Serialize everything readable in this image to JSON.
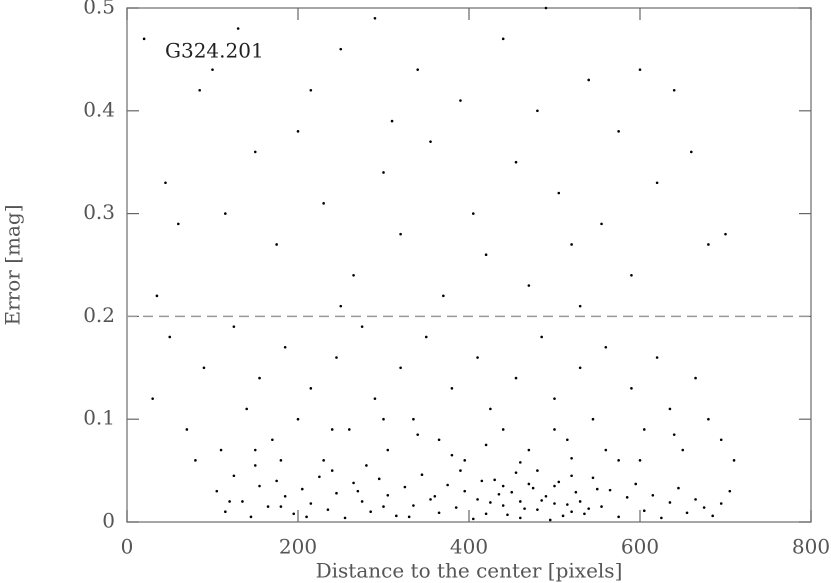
{
  "chart_data": {
    "type": "scatter",
    "xlabel": "Distance to the center [pixels]",
    "ylabel": "Error [mag]",
    "annotation": "G324.201",
    "xlim": [
      0,
      800
    ],
    "xticks": [
      0,
      200,
      400,
      600,
      800
    ],
    "ylim": [
      0,
      0.5
    ],
    "yticks": [
      0,
      0.1,
      0.2,
      0.3,
      0.4,
      0.5
    ],
    "hline": 0.2,
    "color": "#000000",
    "series": [
      {
        "x": [
          20,
          45,
          60,
          85,
          100,
          115,
          130,
          150,
          175,
          200,
          215,
          230,
          250,
          265,
          290,
          300,
          320,
          340,
          355,
          370,
          390,
          405,
          420,
          440,
          455,
          470,
          490,
          505,
          520,
          540,
          555,
          575,
          590,
          600,
          620,
          640,
          660,
          680,
          700,
          35,
          310,
          480,
          530,
          250,
          30,
          50,
          70,
          90,
          110,
          125,
          140,
          155,
          170,
          185,
          200,
          215,
          230,
          245,
          260,
          275,
          290,
          305,
          320,
          335,
          350,
          365,
          380,
          395,
          410,
          425,
          440,
          455,
          470,
          485,
          500,
          515,
          530,
          545,
          560,
          575,
          590,
          605,
          620,
          635,
          650,
          665,
          680,
          695,
          710,
          180,
          280,
          380,
          460,
          520,
          420,
          340,
          560,
          240,
          150,
          600,
          300,
          500,
          640,
          80,
          105,
          115,
          125,
          135,
          145,
          155,
          165,
          175,
          185,
          195,
          205,
          215,
          225,
          235,
          245,
          255,
          265,
          275,
          285,
          295,
          305,
          315,
          325,
          335,
          345,
          355,
          365,
          375,
          385,
          395,
          405,
          415,
          425,
          435,
          445,
          455,
          465,
          475,
          485,
          495,
          505,
          515,
          525,
          535,
          545,
          555,
          565,
          575,
          585,
          595,
          605,
          615,
          625,
          635,
          645,
          655,
          665,
          675,
          685,
          695,
          705,
          410,
          420,
          430,
          440,
          450,
          460,
          470,
          480,
          490,
          500,
          510,
          520,
          530,
          540,
          550,
          460,
          480,
          500,
          440,
          520,
          390,
          360,
          330,
          300,
          270,
          240,
          210,
          180,
          150,
          120
        ],
        "y": [
          0.47,
          0.33,
          0.29,
          0.42,
          0.44,
          0.3,
          0.48,
          0.36,
          0.27,
          0.38,
          0.42,
          0.31,
          0.46,
          0.24,
          0.49,
          0.34,
          0.28,
          0.44,
          0.37,
          0.22,
          0.41,
          0.3,
          0.26,
          0.47,
          0.35,
          0.23,
          0.5,
          0.32,
          0.27,
          0.43,
          0.29,
          0.38,
          0.24,
          0.44,
          0.33,
          0.42,
          0.36,
          0.27,
          0.28,
          0.22,
          0.39,
          0.4,
          0.21,
          0.21,
          0.12,
          0.18,
          0.09,
          0.15,
          0.07,
          0.19,
          0.11,
          0.14,
          0.08,
          0.17,
          0.1,
          0.13,
          0.06,
          0.16,
          0.09,
          0.19,
          0.12,
          0.07,
          0.15,
          0.1,
          0.18,
          0.08,
          0.13,
          0.06,
          0.16,
          0.11,
          0.09,
          0.14,
          0.07,
          0.18,
          0.12,
          0.08,
          0.15,
          0.1,
          0.17,
          0.06,
          0.13,
          0.09,
          0.16,
          0.11,
          0.07,
          0.14,
          0.1,
          0.08,
          0.06,
          0.06,
          0.055,
          0.065,
          0.058,
          0.062,
          0.075,
          0.085,
          0.07,
          0.09,
          0.07,
          0.06,
          0.1,
          0.09,
          0.085,
          0.06,
          0.03,
          0.01,
          0.045,
          0.02,
          0.005,
          0.035,
          0.015,
          0.04,
          0.025,
          0.008,
          0.032,
          0.018,
          0.044,
          0.012,
          0.028,
          0.004,
          0.038,
          0.02,
          0.01,
          0.042,
          0.026,
          0.006,
          0.034,
          0.016,
          0.046,
          0.022,
          0.009,
          0.036,
          0.014,
          0.03,
          0.003,
          0.04,
          0.019,
          0.027,
          0.007,
          0.048,
          0.013,
          0.033,
          0.021,
          0.002,
          0.039,
          0.017,
          0.029,
          0.008,
          0.043,
          0.015,
          0.031,
          0.005,
          0.024,
          0.037,
          0.011,
          0.026,
          0.004,
          0.019,
          0.033,
          0.009,
          0.022,
          0.014,
          0.006,
          0.018,
          0.03,
          0.022,
          0.008,
          0.041,
          0.016,
          0.029,
          0.004,
          0.037,
          0.012,
          0.025,
          0.018,
          0.006,
          0.045,
          0.02,
          0.013,
          0.032,
          0.02,
          0.05,
          0.035,
          0.035,
          0.01,
          0.05,
          0.025,
          0.005,
          0.015,
          0.03,
          0.05,
          0.005,
          0.015,
          0.055,
          0.02
        ]
      }
    ]
  }
}
